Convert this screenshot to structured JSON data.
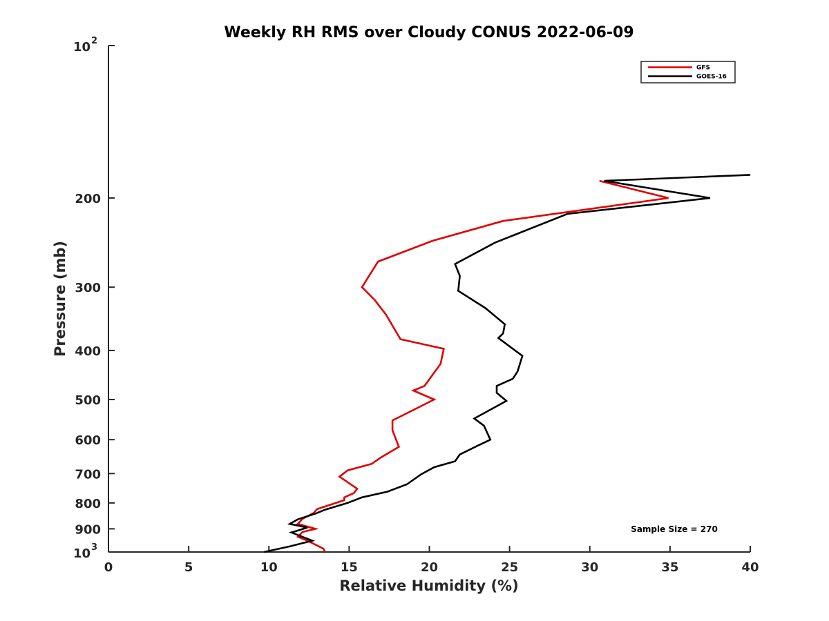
{
  "chart_data": {
    "type": "line",
    "title": "Weekly RH RMS over Cloudy CONUS 2022-06-09",
    "xlabel": "Relative Humidity (%)",
    "ylabel": "Pressure (mb)",
    "xlim": [
      0,
      40
    ],
    "ylim": [
      100,
      1000
    ],
    "yscale": "log",
    "y_reversed": true,
    "x_ticks": [
      0,
      5,
      10,
      15,
      20,
      25,
      30,
      35,
      40
    ],
    "x_tick_labels": [
      "0",
      "5",
      "10",
      "15",
      "20",
      "25",
      "30",
      "35",
      "40"
    ],
    "y_ticks": [
      {
        "value": 100,
        "label": "10",
        "sup": "2"
      },
      {
        "value": 200,
        "label": "200"
      },
      {
        "value": 300,
        "label": "300"
      },
      {
        "value": 400,
        "label": "400"
      },
      {
        "value": 500,
        "label": "500"
      },
      {
        "value": 600,
        "label": "600"
      },
      {
        "value": 700,
        "label": "700"
      },
      {
        "value": 800,
        "label": "800"
      },
      {
        "value": 900,
        "label": "900"
      },
      {
        "value": 1000,
        "label": "10",
        "sup": "3"
      }
    ],
    "legend_position": "top-right",
    "annotation": "Sample Size = 270",
    "series": [
      {
        "name": "GFS",
        "color": "#e00000",
        "points": [
          [
            30.6,
            185
          ],
          [
            34.9,
            200
          ],
          [
            24.6,
            222
          ],
          [
            20.2,
            243
          ],
          [
            16.8,
            267
          ],
          [
            15.8,
            300
          ],
          [
            16.6,
            318
          ],
          [
            17.3,
            340
          ],
          [
            18.2,
            380
          ],
          [
            20.9,
            397
          ],
          [
            20.7,
            425
          ],
          [
            19.7,
            470
          ],
          [
            19.0,
            480
          ],
          [
            20.3,
            500
          ],
          [
            17.7,
            550
          ],
          [
            17.7,
            575
          ],
          [
            18.1,
            620
          ],
          [
            17.0,
            650
          ],
          [
            16.4,
            670
          ],
          [
            14.9,
            690
          ],
          [
            14.4,
            710
          ],
          [
            15.5,
            750
          ],
          [
            15.3,
            765
          ],
          [
            14.7,
            780
          ],
          [
            14.7,
            790
          ],
          [
            13.0,
            823
          ],
          [
            12.8,
            837
          ],
          [
            12.1,
            860
          ],
          [
            11.8,
            880
          ],
          [
            12.9,
            900
          ],
          [
            12.1,
            913
          ],
          [
            11.8,
            933
          ],
          [
            12.4,
            950
          ],
          [
            13.4,
            985
          ],
          [
            13.5,
            1000
          ]
        ]
      },
      {
        "name": "GOES-16",
        "color": "#000000",
        "points": [
          [
            40.0,
            180
          ],
          [
            30.9,
            185
          ],
          [
            37.5,
            200
          ],
          [
            28.6,
            215
          ],
          [
            24.1,
            245
          ],
          [
            21.6,
            270
          ],
          [
            21.9,
            285
          ],
          [
            21.8,
            305
          ],
          [
            23.5,
            330
          ],
          [
            24.7,
            355
          ],
          [
            24.6,
            370
          ],
          [
            24.3,
            378
          ],
          [
            25.8,
            410
          ],
          [
            25.5,
            440
          ],
          [
            25.2,
            455
          ],
          [
            24.2,
            470
          ],
          [
            24.2,
            485
          ],
          [
            24.8,
            503
          ],
          [
            23.5,
            530
          ],
          [
            22.8,
            545
          ],
          [
            23.4,
            563
          ],
          [
            23.8,
            600
          ],
          [
            23.0,
            617
          ],
          [
            21.9,
            642
          ],
          [
            21.6,
            662
          ],
          [
            20.3,
            680
          ],
          [
            19.5,
            702
          ],
          [
            18.6,
            735
          ],
          [
            17.4,
            760
          ],
          [
            15.8,
            780
          ],
          [
            14.9,
            800
          ],
          [
            13.5,
            825
          ],
          [
            12.9,
            840
          ],
          [
            11.8,
            862
          ],
          [
            11.3,
            880
          ],
          [
            12.4,
            895
          ],
          [
            11.4,
            915
          ],
          [
            12.7,
            950
          ],
          [
            11.3,
            975
          ],
          [
            9.7,
            1000
          ]
        ]
      }
    ]
  }
}
